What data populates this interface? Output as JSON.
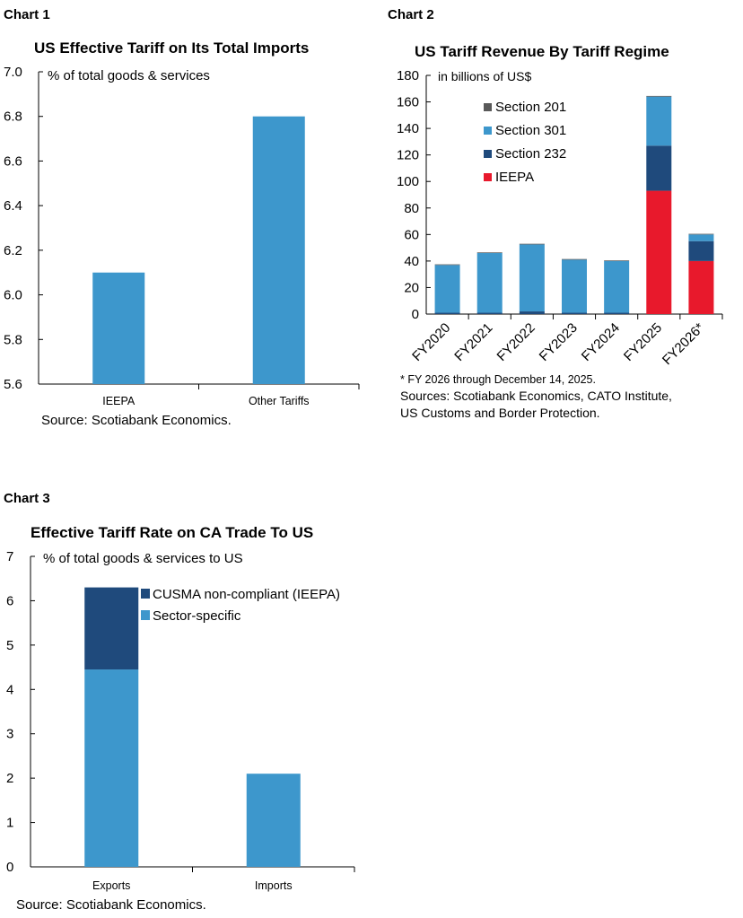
{
  "colors": {
    "light_blue": "#3d97cc",
    "dark_blue": "#1f4a7c",
    "red": "#e8192c",
    "grey": "#595959",
    "axis": "#000000"
  },
  "chart_data": [
    {
      "label": "Chart 1",
      "type": "bar",
      "title": "US Effective Tariff on Its Total Imports",
      "ylabel": "% of total goods & services",
      "categories": [
        "IEEPA",
        "Other Tariffs"
      ],
      "values": [
        6.1,
        6.8
      ],
      "ylim": [
        5.6,
        7.0
      ],
      "yticks": [
        5.6,
        5.8,
        6.0,
        6.2,
        6.4,
        6.6,
        6.8,
        7.0
      ],
      "ytick_labels": [
        "5.6",
        "5.8",
        "6.0",
        "6.2",
        "6.4",
        "6.6",
        "6.8",
        "7.0"
      ],
      "source": "Source: Scotiabank Economics.",
      "grid": false
    },
    {
      "label": "Chart 2",
      "type": "bar",
      "stacked": true,
      "title": "US Tariff Revenue By Tariff Regime",
      "ylabel": "in billions of US$",
      "categories": [
        "FY2020",
        "FY2021",
        "FY2022",
        "FY2023",
        "FY2024",
        "FY2025",
        "FY2026*"
      ],
      "ylim": [
        0,
        180
      ],
      "yticks": [
        0,
        20,
        40,
        60,
        80,
        100,
        120,
        140,
        160,
        180
      ],
      "series": [
        {
          "name": "IEEPA",
          "values": [
            0,
            0,
            0,
            0,
            0,
            93,
            40
          ]
        },
        {
          "name": "Section 232",
          "values": [
            1,
            1,
            2,
            1,
            1,
            34,
            15
          ]
        },
        {
          "name": "Section 301",
          "values": [
            36,
            45,
            50.5,
            40,
            39,
            37,
            5
          ]
        },
        {
          "name": "Section 201",
          "values": [
            0.5,
            0.5,
            0.5,
            0.5,
            0.5,
            0.5,
            0.5
          ]
        }
      ],
      "legend_order": [
        "Section 201",
        "Section 301",
        "Section 232",
        "IEEPA"
      ],
      "legend_position": "upper-left",
      "note": "* FY 2026 through December 14, 2025.",
      "source_lines": [
        "Sources: Scotiabank Economics, CATO Institute,",
        "US Customs and Border Protection."
      ],
      "grid": false
    },
    {
      "label": "Chart 3",
      "type": "bar",
      "stacked": true,
      "title": "Effective Tariff Rate on CA Trade To US",
      "ylabel": "% of total goods & services to US",
      "categories": [
        "Exports",
        "Imports"
      ],
      "ylim": [
        0,
        7
      ],
      "yticks": [
        0,
        1,
        2,
        3,
        4,
        5,
        6,
        7
      ],
      "series": [
        {
          "name": "Sector-specific",
          "values": [
            4.45,
            2.1
          ]
        },
        {
          "name": "CUSMA non-compliant (IEEPA)",
          "values": [
            1.85,
            0
          ]
        }
      ],
      "legend_order": [
        "CUSMA non-compliant (IEEPA)",
        "Sector-specific"
      ],
      "legend_position": "upper-center",
      "source": "Source: Scotiabank Economics.",
      "grid": false
    }
  ]
}
